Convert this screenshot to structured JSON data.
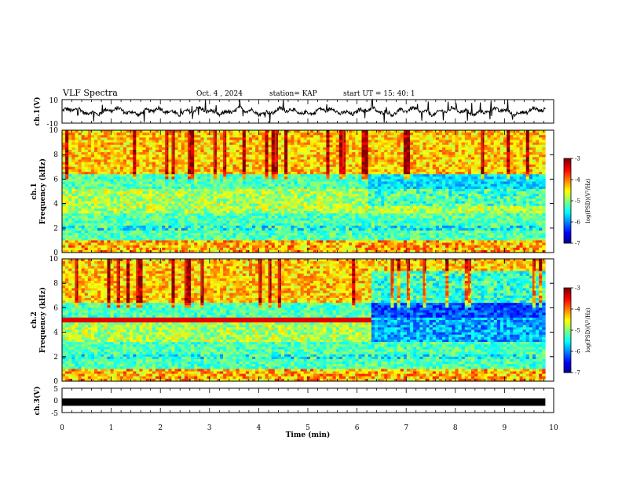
{
  "header": {
    "title": "VLF Spectra",
    "date": "Oct. 4 , 2024",
    "station": "station= KAP",
    "start": "start UT = 15: 40: 1"
  },
  "chart_data": [
    {
      "type": "line",
      "ylabel": "ch.1(V)",
      "ylim": [
        -10,
        10
      ],
      "yticks": [
        "10",
        "-10"
      ],
      "xlim": [
        0,
        10
      ],
      "grid": false
    },
    {
      "type": "heatmap",
      "ylabel": "ch.1\nFrequency (kHz)",
      "xlim": [
        0,
        10
      ],
      "ylim": [
        0,
        10
      ],
      "yticks": [
        "0",
        "2",
        "4",
        "6",
        "8",
        "10"
      ],
      "colorbar": {
        "label": "log(PSD)(V²/Hz)",
        "range": [
          -7,
          -3
        ],
        "ticks": [
          "-3",
          "-4",
          "-5",
          "-6",
          "-7"
        ]
      }
    },
    {
      "type": "heatmap",
      "ylabel": "ch.2\nFrequency (kHz)",
      "xlim": [
        0,
        10
      ],
      "ylim": [
        0,
        10
      ],
      "yticks": [
        "0",
        "2",
        "4",
        "6",
        "8",
        "10"
      ],
      "colorbar": {
        "label": "log(PSD)(V²/Hz)",
        "range": [
          -7,
          -3
        ],
        "ticks": [
          "-3",
          "-4",
          "-5",
          "-6",
          "-7"
        ]
      }
    },
    {
      "type": "line",
      "ylabel": "ch.3(V)",
      "ylim": [
        -5,
        5
      ],
      "yticks": [
        "5",
        "0",
        "-5"
      ],
      "xlim": [
        0,
        10
      ],
      "xlabel": "Time (min)",
      "xticks": [
        "0",
        "1",
        "2",
        "3",
        "4",
        "5",
        "6",
        "7",
        "8",
        "9",
        "10"
      ],
      "data_end_min": 9.83
    }
  ]
}
